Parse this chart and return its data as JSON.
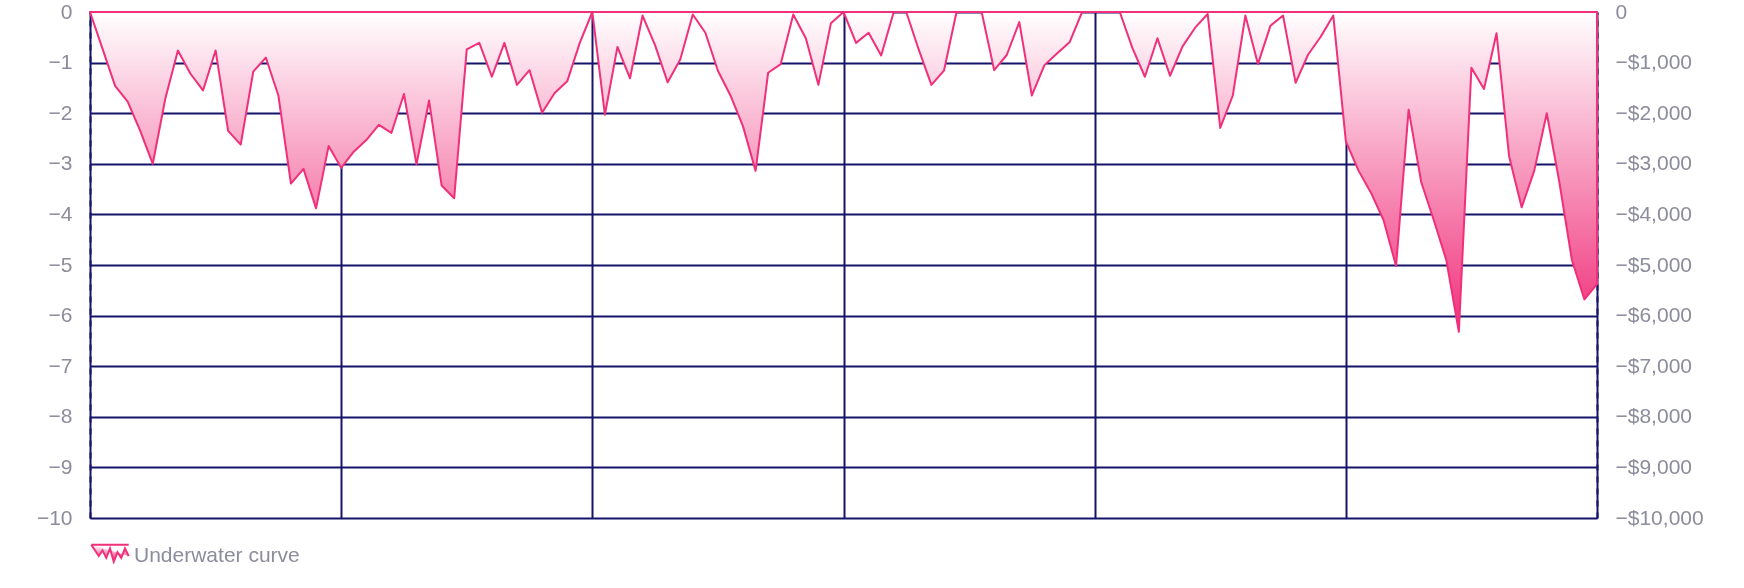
{
  "chart_data": {
    "type": "area",
    "categories": [
      null,
      null,
      null,
      null,
      null,
      null,
      null,
      null,
      null,
      null,
      null,
      null,
      null,
      null,
      null,
      null,
      null,
      null,
      null,
      null,
      null,
      null,
      null,
      null,
      null,
      null,
      null,
      null,
      null,
      null,
      null,
      null,
      null,
      null,
      null,
      null,
      null,
      null,
      null,
      null,
      null,
      null,
      null,
      null,
      null,
      null,
      null,
      null,
      null,
      null,
      null,
      null,
      null,
      null,
      null,
      null,
      null,
      null,
      null,
      null,
      null,
      null,
      null,
      null,
      null,
      null,
      null,
      null,
      null,
      null,
      null,
      null,
      null,
      null,
      null,
      null,
      null,
      null,
      null,
      null,
      null,
      null,
      null,
      null,
      null,
      null,
      null,
      null,
      null,
      null,
      null,
      null,
      null,
      null,
      null,
      null,
      null,
      null,
      null,
      null,
      null,
      null,
      null,
      null,
      null,
      null,
      null,
      null,
      null,
      null,
      null,
      null,
      null,
      null,
      null,
      null,
      null,
      null,
      null,
      null,
      null
    ],
    "series": [
      {
        "name": "Underwater curve",
        "color": "#f0307a",
        "values": [
          0,
          -0.73,
          -1.46,
          -1.77,
          -2.35,
          -3.0,
          -1.71,
          -0.76,
          -1.22,
          -1.55,
          -0.76,
          -2.35,
          -2.62,
          -1.18,
          -0.9,
          -1.65,
          -3.39,
          -3.1,
          -3.88,
          -2.65,
          -3.08,
          -2.76,
          -2.53,
          -2.23,
          -2.39,
          -1.62,
          -3.01,
          -1.75,
          -3.43,
          -3.68,
          -0.74,
          -0.61,
          -1.28,
          -0.61,
          -1.44,
          -1.15,
          -1.99,
          -1.6,
          -1.37,
          -0.61,
          0,
          -2.03,
          -0.69,
          -1.31,
          -0.07,
          -0.66,
          -1.39,
          -0.94,
          -0.05,
          -0.41,
          -1.16,
          -1.65,
          -2.26,
          -3.14,
          -1.2,
          -1.03,
          -0.05,
          -0.52,
          -1.44,
          -0.22,
          0,
          -0.61,
          -0.41,
          -0.86,
          0,
          0,
          -0.75,
          -1.44,
          -1.16,
          0,
          0,
          0,
          -1.15,
          -0.85,
          -0.2,
          -1.65,
          -1.05,
          -0.82,
          -0.6,
          0,
          0,
          0,
          0,
          -0.71,
          -1.28,
          -0.52,
          -1.26,
          -0.68,
          -0.31,
          -0.04,
          -2.29,
          -1.65,
          -0.07,
          -1.03,
          -0.27,
          -0.07,
          -1.4,
          -0.84,
          -0.49,
          -0.07,
          -2.55,
          -3.13,
          -3.57,
          -4.11,
          -5.02,
          -1.93,
          -3.36,
          -4.11,
          -4.9,
          -6.32,
          -1.1,
          -1.52,
          -0.42,
          -2.85,
          -3.86,
          -3.14,
          -2.0,
          -3.36,
          -4.9,
          -5.68,
          -5.38
        ]
      }
    ],
    "ylim": [
      -10,
      0
    ],
    "yticks": [
      {
        "value": 0,
        "label": "0"
      },
      {
        "value": -1,
        "label": "−1"
      },
      {
        "value": -2,
        "label": "−2"
      },
      {
        "value": -3,
        "label": "−3"
      },
      {
        "value": -4,
        "label": "−4"
      },
      {
        "value": -5,
        "label": "−5"
      },
      {
        "value": -6,
        "label": "−6"
      },
      {
        "value": -7,
        "label": "−7"
      },
      {
        "value": -8,
        "label": "−8"
      },
      {
        "value": -9,
        "label": "−9"
      },
      {
        "value": -10,
        "label": "−10"
      }
    ],
    "y2lim": [
      -10000,
      0
    ],
    "y2ticks": [
      {
        "value": 0,
        "label": "0"
      },
      {
        "value": -1000,
        "label": "−$1,000"
      },
      {
        "value": -2000,
        "label": "−$2,000"
      },
      {
        "value": -3000,
        "label": "−$3,000"
      },
      {
        "value": -4000,
        "label": "−$4,000"
      },
      {
        "value": -5000,
        "label": "−$5,000"
      },
      {
        "value": -6000,
        "label": "−$6,000"
      },
      {
        "value": -7000,
        "label": "−$7,000"
      },
      {
        "value": -8000,
        "label": "−$8,000"
      },
      {
        "value": -9000,
        "label": "−$9,000"
      },
      {
        "value": -10000,
        "label": "−$10,000"
      }
    ],
    "grid": true,
    "legend": "bottom",
    "line_style": "solid",
    "marker": "none"
  }
}
